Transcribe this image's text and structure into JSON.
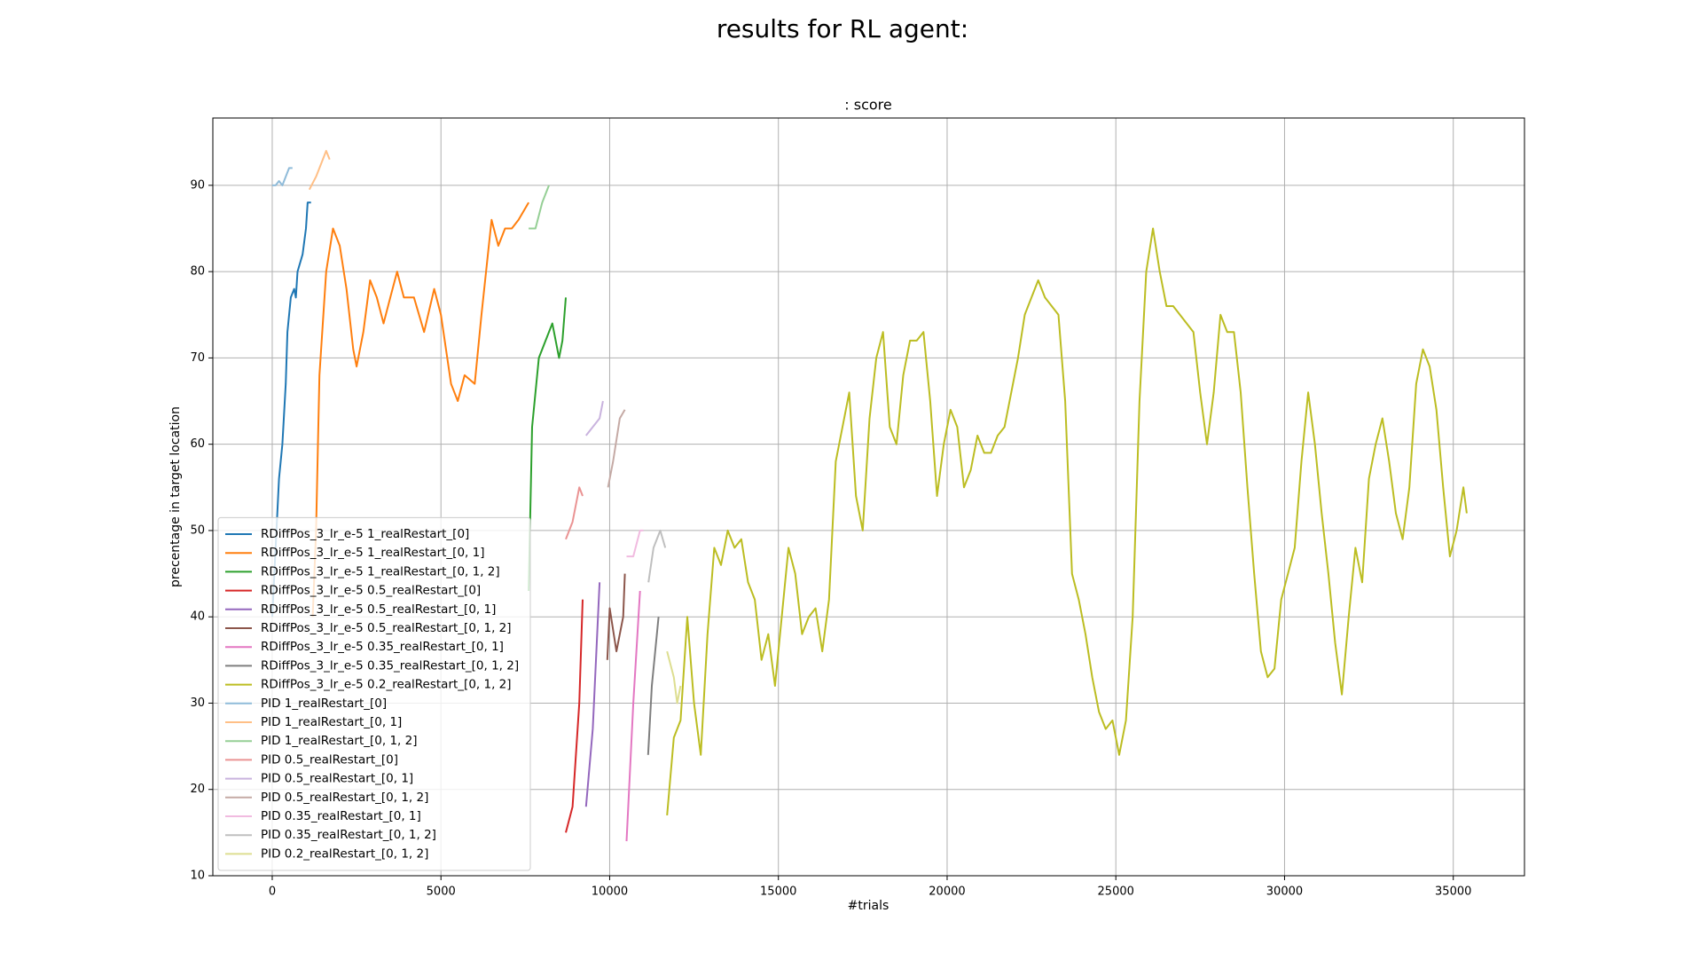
{
  "chart_data": {
    "type": "line",
    "title": "results for RL agent:",
    "subtitle": ": score",
    "x_label": "#trials",
    "y_label": "precentage in target location",
    "xlim": [
      -1760,
      37110
    ],
    "ylim": [
      10,
      97.8
    ],
    "xticks": [
      0,
      5000,
      10000,
      15000,
      20000,
      25000,
      30000,
      35000
    ],
    "yticks": [
      10,
      20,
      30,
      40,
      50,
      60,
      70,
      80,
      90
    ],
    "grid": true,
    "legend": "lower left",
    "series": [
      {
        "name": "RDiffPos_3_lr_e-5 1_realRestart_[0]",
        "color": "#1f77b4",
        "x": [
          0,
          100,
          200,
          300,
          400,
          450,
          550,
          650,
          700,
          750,
          900,
          1000,
          1050,
          1150
        ],
        "values": [
          40,
          48,
          56,
          60,
          67,
          73,
          77,
          78,
          77,
          80,
          82,
          85,
          88,
          88
        ]
      },
      {
        "name": "RDiffPos_3_lr_e-5 1_realRestart_[0, 1]",
        "color": "#ff7f0e",
        "x": [
          1200,
          1300,
          1400,
          1600,
          1800,
          2000,
          2200,
          2400,
          2500,
          2700,
          2900,
          3100,
          3300,
          3500,
          3700,
          3900,
          4200,
          4500,
          4800,
          5000,
          5300,
          5500,
          5700,
          6000,
          6200,
          6500,
          6700,
          6900,
          7100,
          7300,
          7600
        ],
        "values": [
          40,
          50,
          68,
          80,
          85,
          83,
          78,
          71,
          69,
          73,
          79,
          77,
          74,
          77,
          80,
          77,
          77,
          73,
          78,
          75,
          67,
          65,
          68,
          67,
          75,
          86,
          83,
          85,
          85,
          86,
          88
        ]
      },
      {
        "name": "RDiffPos_3_lr_e-5 1_realRestart_[0, 1, 2]",
        "color": "#2ca02c",
        "x": [
          7600,
          7700,
          7900,
          8100,
          8300,
          8500,
          8600,
          8700
        ],
        "values": [
          43,
          62,
          70,
          72,
          74,
          70,
          72,
          77
        ]
      },
      {
        "name": "RDiffPos_3_lr_e-5 0.5_realRestart_[0]",
        "color": "#d62728",
        "x": [
          8700,
          8900,
          9100,
          9200
        ],
        "values": [
          15,
          18,
          30,
          42
        ]
      },
      {
        "name": "RDiffPos_3_lr_e-5 0.5_realRestart_[0, 1]",
        "color": "#9467bd",
        "x": [
          9300,
          9500,
          9700
        ],
        "values": [
          18,
          27,
          44
        ]
      },
      {
        "name": "RDiffPos_3_lr_e-5 0.5_realRestart_[0, 1, 2]",
        "color": "#8c564b",
        "x": [
          9930,
          10000,
          10200,
          10400,
          10450
        ],
        "values": [
          35,
          41,
          36,
          40,
          45
        ]
      },
      {
        "name": "RDiffPos_3_lr_e-5 0.35_realRestart_[0, 1]",
        "color": "#e377c2",
        "x": [
          10500,
          10700,
          10900
        ],
        "values": [
          14,
          30,
          43
        ]
      },
      {
        "name": "RDiffPos_3_lr_e-5 0.35_realRestart_[0, 1, 2]",
        "color": "#7f7f7f",
        "x": [
          11140,
          11250,
          11450
        ],
        "values": [
          24,
          32,
          40
        ]
      },
      {
        "name": "RDiffPos_3_lr_e-5 0.2_realRestart_[0, 1, 2]",
        "color": "#bcbd22",
        "x": [
          11700,
          11900,
          12100,
          12300,
          12500,
          12700,
          12900,
          13100,
          13300,
          13500,
          13700,
          13900,
          14100,
          14300,
          14500,
          14700,
          14900,
          15100,
          15300,
          15500,
          15700,
          15900,
          16100,
          16300,
          16500,
          16700,
          16900,
          17100,
          17300,
          17500,
          17700,
          17900,
          18100,
          18300,
          18500,
          18700,
          18900,
          19100,
          19300,
          19500,
          19700,
          19900,
          20100,
          20300,
          20500,
          20700,
          20900,
          21100,
          21300,
          21500,
          21700,
          21900,
          22100,
          22300,
          22500,
          22700,
          22900,
          23100,
          23300,
          23500,
          23700,
          23900,
          24100,
          24300,
          24500,
          24700,
          24900,
          25100,
          25300,
          25500,
          25700,
          25900,
          26100,
          26300,
          26500,
          26700,
          26900,
          27100,
          27300,
          27500,
          27700,
          27900,
          28100,
          28300,
          28500,
          28700,
          28900,
          29100,
          29300,
          29500,
          29700,
          29900,
          30100,
          30300,
          30500,
          30700,
          30900,
          31100,
          31300,
          31500,
          31700,
          31900,
          32100,
          32300,
          32500,
          32700,
          32900,
          33100,
          33300,
          33500,
          33700,
          33900,
          34100,
          34300,
          34500,
          34700,
          34900,
          35100,
          35300,
          35400
        ],
        "values": [
          17,
          26,
          28,
          40,
          30,
          24,
          38,
          48,
          46,
          50,
          48,
          49,
          44,
          42,
          35,
          38,
          32,
          40,
          48,
          45,
          38,
          40,
          41,
          36,
          42,
          58,
          62,
          66,
          54,
          50,
          63,
          70,
          73,
          62,
          60,
          68,
          72,
          72,
          73,
          65,
          54,
          60,
          64,
          62,
          55,
          57,
          61,
          59,
          59,
          61,
          62,
          66,
          70,
          75,
          77,
          79,
          77,
          76,
          75,
          65,
          45,
          42,
          38,
          33,
          29,
          27,
          28,
          24,
          28,
          40,
          65,
          80,
          85,
          80,
          76,
          76,
          75,
          74,
          73,
          66,
          60,
          66,
          75,
          73,
          73,
          66,
          55,
          45,
          36,
          33,
          34,
          42,
          45,
          48,
          58,
          66,
          60,
          52,
          45,
          37,
          31,
          40,
          48,
          44,
          56,
          60,
          63,
          58,
          52,
          49,
          55,
          67,
          71,
          69,
          64,
          55,
          47,
          50,
          55,
          52
        ]
      },
      {
        "name": "PID 1_realRestart_[0]",
        "color": "#8fbbd9",
        "x": [
          0,
          100,
          200,
          300,
          400,
          500,
          600
        ],
        "values": [
          90,
          90,
          90.5,
          90,
          91,
          92,
          92
        ]
      },
      {
        "name": "PID 1_realRestart_[0, 1]",
        "color": "#ffbf86",
        "x": [
          1100,
          1300,
          1500,
          1600,
          1700
        ],
        "values": [
          89.5,
          91,
          93,
          94,
          93
        ]
      },
      {
        "name": "PID 1_realRestart_[0, 1, 2]",
        "color": "#95cf95",
        "x": [
          7600,
          7800,
          8000,
          8200
        ],
        "values": [
          85,
          85,
          88,
          90
        ]
      },
      {
        "name": "PID 0.5_realRestart_[0]",
        "color": "#ea9393",
        "x": [
          8700,
          8900,
          9100,
          9200
        ],
        "values": [
          49,
          51,
          55,
          54
        ]
      },
      {
        "name": "PID 0.5_realRestart_[0, 1]",
        "color": "#c9b3de",
        "x": [
          9300,
          9500,
          9700,
          9800
        ],
        "values": [
          61,
          62,
          63,
          65
        ]
      },
      {
        "name": "PID 0.5_realRestart_[0, 1, 2]",
        "color": "#c5aaa5",
        "x": [
          9950,
          10100,
          10300,
          10450
        ],
        "values": [
          55,
          58,
          63,
          64
        ]
      },
      {
        "name": "PID 0.35_realRestart_[0, 1]",
        "color": "#f1bbe0",
        "x": [
          10500,
          10700,
          10900,
          11000
        ],
        "values": [
          47,
          47,
          50,
          50
        ]
      },
      {
        "name": "PID 0.35_realRestart_[0, 1, 2]",
        "color": "#bfbfbf",
        "x": [
          11150,
          11300,
          11500,
          11650
        ],
        "values": [
          44,
          48,
          50,
          48
        ]
      },
      {
        "name": "PID 0.2_realRestart_[0, 1, 2]",
        "color": "#ddde90",
        "x": [
          11700,
          11900,
          12000,
          12100
        ],
        "values": [
          36,
          33,
          30,
          32
        ]
      }
    ]
  }
}
